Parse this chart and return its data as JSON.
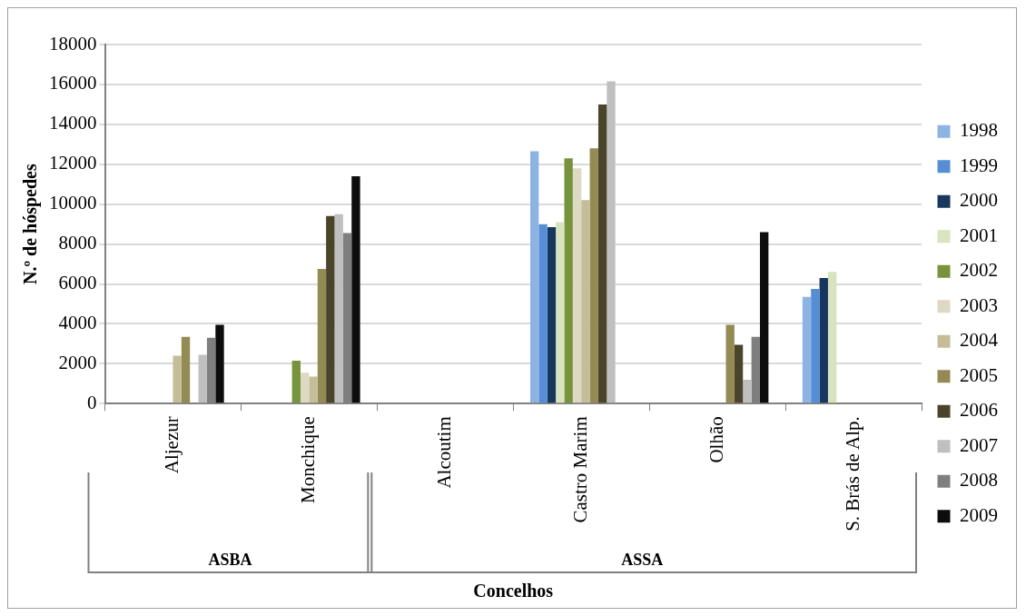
{
  "chart_data": {
    "type": "bar",
    "xlabel": "Concelhos",
    "ylabel": "N.º de hóspedes",
    "categories": [
      "Aljezur",
      "Monchique",
      "Alcoutim",
      "Castro Marim",
      "Olhão",
      "S. Brás de Alp."
    ],
    "annotations": [
      "ASBA",
      "ASSA"
    ],
    "ylim": [
      0,
      18000
    ],
    "yticks": [
      0,
      2000,
      4000,
      6000,
      8000,
      10000,
      12000,
      14000,
      16000,
      18000
    ],
    "grid": "y",
    "legend": "right",
    "series": [
      {
        "name": "1998",
        "color": "#8db3e2",
        "values": [
          null,
          null,
          null,
          12650,
          null,
          5350
        ]
      },
      {
        "name": "1999",
        "color": "#558ed5",
        "values": [
          null,
          null,
          null,
          9000,
          null,
          5750
        ]
      },
      {
        "name": "2000",
        "color": "#17375e",
        "values": [
          null,
          null,
          null,
          8850,
          null,
          6300
        ]
      },
      {
        "name": "2001",
        "color": "#d7e4bd",
        "values": [
          null,
          null,
          null,
          9100,
          null,
          6600
        ]
      },
      {
        "name": "2002",
        "color": "#77933c",
        "values": [
          null,
          2150,
          null,
          12300,
          null,
          null
        ]
      },
      {
        "name": "2003",
        "color": "#ddd9c3",
        "values": [
          null,
          1550,
          null,
          11800,
          null,
          null
        ]
      },
      {
        "name": "2004",
        "color": "#c4bd97",
        "values": [
          2400,
          1350,
          null,
          10200,
          null,
          null
        ]
      },
      {
        "name": "2005",
        "color": "#948a54",
        "values": [
          3350,
          6750,
          null,
          12800,
          3950,
          null
        ]
      },
      {
        "name": "2006",
        "color": "#4a452a",
        "values": [
          null,
          9400,
          null,
          15000,
          2950,
          null
        ]
      },
      {
        "name": "2007",
        "color": "#bfbfbf",
        "values": [
          2450,
          9500,
          null,
          16150,
          1200,
          null
        ]
      },
      {
        "name": "2008",
        "color": "#7f7f7f",
        "values": [
          3300,
          8550,
          null,
          null,
          3350,
          null
        ]
      },
      {
        "name": "2009",
        "color": "#0d0d0d",
        "values": [
          3950,
          11400,
          null,
          null,
          8600,
          null
        ]
      }
    ]
  }
}
